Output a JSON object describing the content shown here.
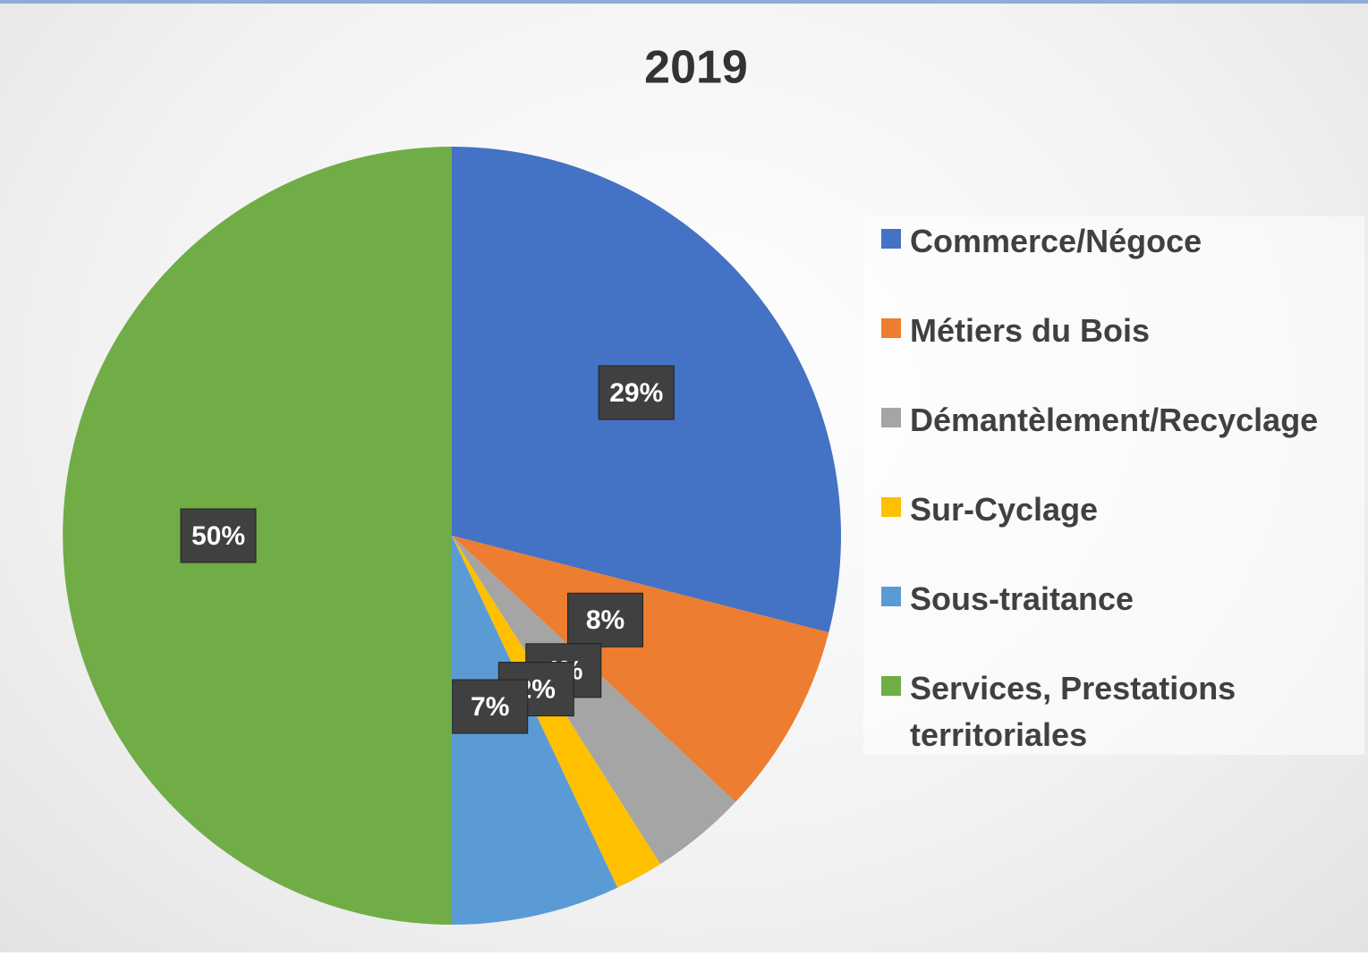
{
  "chart_data": {
    "type": "pie",
    "title": "2019",
    "categories": [
      "Commerce/Négoce",
      "Métiers du Bois",
      "Démantèlement/Recyclage",
      "Sur-Cyclage",
      "Sous-traitance",
      "Services, Prestations territoriales"
    ],
    "values": [
      29,
      8,
      4,
      2,
      7,
      50
    ],
    "value_labels": [
      "29%",
      "8%",
      "4%",
      "2%",
      "7%",
      "50%"
    ],
    "colors": [
      "#4472c4",
      "#ed7d31",
      "#a5a5a5",
      "#ffc000",
      "#5b9bd5",
      "#70ad47"
    ],
    "legend": "right"
  }
}
